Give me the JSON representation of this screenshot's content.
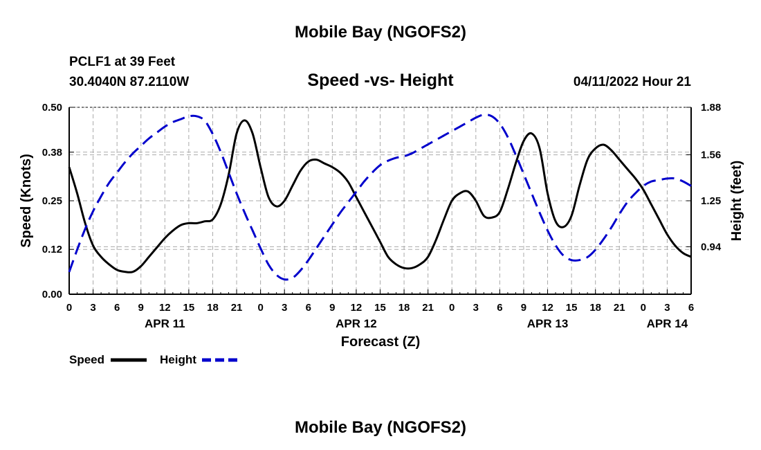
{
  "header": {
    "title": "Mobile Bay (NGOFS2)",
    "station": "PCLF1 at 39 Feet",
    "coords": "30.4040N  87.2110W",
    "subtitle": "Speed -vs- Height",
    "timestamp": "04/11/2022 Hour 21"
  },
  "footer": {
    "title": "Mobile Bay (NGOFS2)"
  },
  "legend": {
    "speed_label": "Speed",
    "height_label": "Height"
  },
  "colors": {
    "speed": "#000000",
    "height": "#0000cc",
    "grid": "#aaaaaa"
  },
  "chart_data": {
    "type": "line",
    "title": "Speed -vs- Height",
    "xlabel": "Forecast (Z)",
    "ylabel": "Speed (Knots)",
    "y2label": "Height (feet)",
    "ylim": [
      0,
      0.5
    ],
    "y2lim": [
      0.62,
      1.88
    ],
    "xlim": [
      0,
      78
    ],
    "x_unit": "hours since 2022-04-11 00Z",
    "yticks": [
      "0.00",
      "0.12",
      "0.25",
      "0.38",
      "0.50"
    ],
    "y2ticks": [
      "0.94",
      "1.25",
      "1.56",
      "1.88"
    ],
    "xtick_labels": [
      "0",
      "3",
      "6",
      "9",
      "12",
      "15",
      "18",
      "21",
      "0",
      "3",
      "6",
      "9",
      "12",
      "15",
      "18",
      "21",
      "0",
      "3",
      "6",
      "9",
      "12",
      "15",
      "18",
      "21",
      "0",
      "3",
      "6"
    ],
    "date_labels": [
      {
        "label": "APR 11",
        "x": 12
      },
      {
        "label": "APR 12",
        "x": 36
      },
      {
        "label": "APR 13",
        "x": 60
      },
      {
        "label": "APR 14",
        "x": 75
      }
    ],
    "grid": true,
    "legend": "bottom-left",
    "series": [
      {
        "name": "Speed",
        "axis": "left",
        "style": "solid",
        "x": [
          0,
          1,
          2,
          3,
          4,
          5,
          6,
          7,
          8,
          9,
          10,
          11,
          12,
          13,
          14,
          15,
          16,
          17,
          18,
          19,
          20,
          21,
          22,
          23,
          24,
          25,
          26,
          27,
          28,
          29,
          30,
          31,
          32,
          33,
          34,
          35,
          36,
          37,
          38,
          39,
          40,
          41,
          42,
          43,
          44,
          45,
          46,
          47,
          48,
          49,
          50,
          51,
          52,
          53,
          54,
          55,
          56,
          57,
          58,
          59,
          60,
          61,
          62,
          63,
          64,
          65,
          66,
          67,
          68,
          69,
          70,
          71,
          72,
          73,
          74,
          75,
          76,
          77,
          78
        ],
        "values": [
          0.34,
          0.27,
          0.19,
          0.13,
          0.1,
          0.08,
          0.065,
          0.06,
          0.06,
          0.075,
          0.1,
          0.125,
          0.15,
          0.17,
          0.185,
          0.19,
          0.19,
          0.195,
          0.2,
          0.24,
          0.32,
          0.43,
          0.465,
          0.43,
          0.34,
          0.26,
          0.235,
          0.25,
          0.29,
          0.33,
          0.355,
          0.36,
          0.35,
          0.34,
          0.325,
          0.3,
          0.26,
          0.22,
          0.18,
          0.14,
          0.1,
          0.08,
          0.07,
          0.07,
          0.08,
          0.1,
          0.145,
          0.2,
          0.25,
          0.27,
          0.275,
          0.25,
          0.21,
          0.205,
          0.22,
          0.28,
          0.35,
          0.41,
          0.43,
          0.39,
          0.27,
          0.195,
          0.18,
          0.21,
          0.29,
          0.36,
          0.39,
          0.4,
          0.385,
          0.36,
          0.335,
          0.31,
          0.28,
          0.24,
          0.2,
          0.16,
          0.13,
          0.11,
          0.1
        ]
      },
      {
        "name": "Height",
        "axis": "right",
        "style": "dashed",
        "x": [
          0,
          1,
          2,
          3,
          4,
          5,
          6,
          7,
          8,
          9,
          10,
          11,
          12,
          13,
          14,
          15,
          16,
          17,
          18,
          19,
          20,
          21,
          22,
          23,
          24,
          25,
          26,
          27,
          28,
          29,
          30,
          31,
          32,
          33,
          34,
          35,
          36,
          37,
          38,
          39,
          40,
          41,
          42,
          43,
          44,
          45,
          46,
          47,
          48,
          49,
          50,
          51,
          52,
          53,
          54,
          55,
          56,
          57,
          58,
          59,
          60,
          61,
          62,
          63,
          64,
          65,
          66,
          67,
          68,
          69,
          70,
          71,
          72,
          73,
          74,
          75,
          76,
          77,
          78
        ],
        "values": [
          0.77,
          0.92,
          1.06,
          1.18,
          1.28,
          1.37,
          1.44,
          1.51,
          1.57,
          1.62,
          1.67,
          1.71,
          1.75,
          1.78,
          1.8,
          1.82,
          1.82,
          1.79,
          1.7,
          1.58,
          1.44,
          1.3,
          1.17,
          1.05,
          0.93,
          0.82,
          0.75,
          0.72,
          0.73,
          0.78,
          0.85,
          0.93,
          1.01,
          1.09,
          1.17,
          1.24,
          1.31,
          1.38,
          1.44,
          1.49,
          1.52,
          1.54,
          1.55,
          1.57,
          1.6,
          1.63,
          1.66,
          1.69,
          1.72,
          1.75,
          1.78,
          1.81,
          1.83,
          1.82,
          1.77,
          1.68,
          1.56,
          1.43,
          1.3,
          1.17,
          1.05,
          0.95,
          0.88,
          0.85,
          0.85,
          0.87,
          0.92,
          0.99,
          1.07,
          1.16,
          1.24,
          1.3,
          1.35,
          1.38,
          1.39,
          1.4,
          1.4,
          1.38,
          1.35
        ]
      }
    ]
  }
}
